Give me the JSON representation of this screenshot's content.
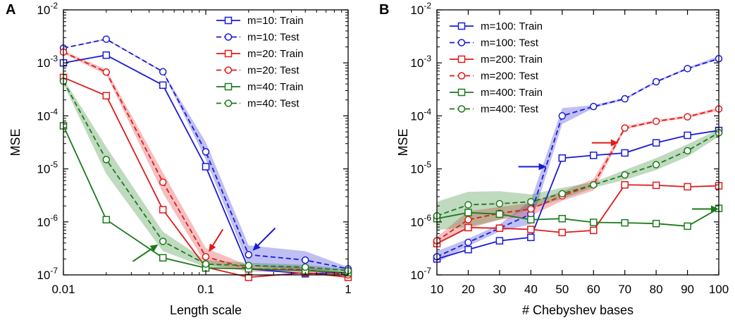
{
  "chart_data": [
    {
      "panel": "A",
      "type": "line",
      "xscale": "log",
      "yscale": "log",
      "xlabel": "Length scale",
      "ylabel": "MSE",
      "xlim": [
        0.01,
        1
      ],
      "ylim": [
        1e-07,
        0.01
      ],
      "xticks": [
        {
          "value": 0.01,
          "label": "0.01"
        },
        {
          "value": 0.1,
          "label": "0.1"
        },
        {
          "value": 1,
          "label": "1"
        }
      ],
      "yticks": [
        {
          "value": 1e-07,
          "base": "10",
          "exp": "-7"
        },
        {
          "value": 1e-06,
          "base": "10",
          "exp": "-6"
        },
        {
          "value": 1e-05,
          "base": "10",
          "exp": "-5"
        },
        {
          "value": 0.0001,
          "base": "10",
          "exp": "-4"
        },
        {
          "value": 0.001,
          "base": "10",
          "exp": "-3"
        },
        {
          "value": 0.01,
          "base": "10",
          "exp": "-2"
        }
      ],
      "legend_position": "top-right",
      "x": [
        0.01,
        0.02,
        0.05,
        0.1,
        0.2,
        0.5,
        1
      ],
      "series": [
        {
          "name": "m=10: Train",
          "color": "#1a1ad6",
          "dash": false,
          "marker": "square",
          "values": [
            0.001,
            0.0014,
            0.00038,
            1.1e-05,
            1.3e-07,
            1.05e-07,
            1.1e-07
          ],
          "band_lo": [
            0.001,
            0.0014,
            0.00038,
            1.1e-05,
            1.3e-07,
            1.05e-07,
            1.1e-07
          ],
          "band_hi": [
            0.001,
            0.0014,
            0.00038,
            1.1e-05,
            1.3e-07,
            1.05e-07,
            1.1e-07
          ]
        },
        {
          "name": "m=10: Test",
          "color": "#1a1ad6",
          "dash": true,
          "marker": "circle",
          "values": [
            0.0019,
            0.0028,
            0.00068,
            2.1e-05,
            2.4e-07,
            1.9e-07,
            1.3e-07
          ],
          "band_lo": [
            0.0019,
            0.0027,
            0.00066,
            1.5e-05,
            1.5e-07,
            1.2e-07,
            1.2e-07
          ],
          "band_hi": [
            0.0019,
            0.0029,
            0.0007,
            3.2e-05,
            3.6e-07,
            2.8e-07,
            1.4e-07
          ]
        },
        {
          "name": "m=20: Train",
          "color": "#e01a1a",
          "dash": false,
          "marker": "square",
          "values": [
            0.00053,
            0.00024,
            1.7e-06,
            1.4e-07,
            9e-08,
            1.1e-07,
            9e-08
          ],
          "band_lo": [
            0.00053,
            0.00024,
            1.7e-06,
            1.4e-07,
            9e-08,
            1.1e-07,
            9e-08
          ],
          "band_hi": [
            0.00053,
            0.00024,
            1.7e-06,
            1.4e-07,
            9e-08,
            1.1e-07,
            9e-08
          ]
        },
        {
          "name": "m=20: Test",
          "color": "#e01a1a",
          "dash": true,
          "marker": "circle",
          "values": [
            0.0016,
            0.00067,
            5.6e-06,
            2.2e-07,
            1.3e-07,
            1.25e-07,
            1e-07
          ],
          "band_lo": [
            0.0015,
            0.0006,
            3.5e-06,
            1.6e-07,
            1.15e-07,
            1.1e-07,
            9e-08
          ],
          "band_hi": [
            0.0017,
            0.00075,
            8.5e-06,
            3.2e-07,
            1.5e-07,
            1.4e-07,
            1.1e-07
          ]
        },
        {
          "name": "m=40: Train",
          "color": "#1a7a1a",
          "dash": false,
          "marker": "square",
          "values": [
            6.5e-05,
            1.1e-06,
            2.1e-07,
            1.35e-07,
            1.3e-07,
            1.2e-07,
            1.1e-07
          ],
          "band_lo": [
            6.5e-05,
            1.1e-06,
            2.1e-07,
            1.35e-07,
            1.3e-07,
            1.2e-07,
            1.1e-07
          ],
          "band_hi": [
            6.5e-05,
            1.1e-06,
            2.1e-07,
            1.35e-07,
            1.3e-07,
            1.2e-07,
            1.1e-07
          ]
        },
        {
          "name": "m=40: Test",
          "color": "#1a7a1a",
          "dash": true,
          "marker": "circle",
          "values": [
            0.00045,
            1.5e-05,
            4.3e-07,
            1.6e-07,
            1.5e-07,
            1.4e-07,
            1.2e-07
          ],
          "band_lo": [
            0.0004,
            8e-06,
            2.8e-07,
            1.4e-07,
            1.35e-07,
            1.25e-07,
            1.1e-07
          ],
          "band_hi": [
            0.0005,
            2.6e-05,
            6.5e-07,
            1.9e-07,
            1.7e-07,
            1.55e-07,
            1.3e-07
          ]
        }
      ],
      "arrows": [
        {
          "color": "#1a1ad6",
          "x": 0.2,
          "y": 2.4e-07,
          "direction": "from-upper-right"
        },
        {
          "color": "#e01a1a",
          "x": 0.1,
          "y": 2.2e-07,
          "direction": "from-upper-right"
        },
        {
          "color": "#1a7a1a",
          "x": 0.05,
          "y": 4.3e-07,
          "direction": "from-lower-left"
        }
      ]
    },
    {
      "panel": "B",
      "type": "line",
      "xscale": "linear",
      "yscale": "log",
      "xlabel": "# Chebyshev bases",
      "ylabel": "MSE",
      "xlim": [
        10,
        100
      ],
      "ylim": [
        1e-07,
        0.01
      ],
      "xticks": [
        {
          "value": 10,
          "label": "10"
        },
        {
          "value": 20,
          "label": "20"
        },
        {
          "value": 30,
          "label": "30"
        },
        {
          "value": 40,
          "label": "40"
        },
        {
          "value": 50,
          "label": "50"
        },
        {
          "value": 60,
          "label": "60"
        },
        {
          "value": 70,
          "label": "70"
        },
        {
          "value": 80,
          "label": "80"
        },
        {
          "value": 90,
          "label": "90"
        },
        {
          "value": 100,
          "label": "100"
        }
      ],
      "yticks": [
        {
          "value": 1e-07,
          "base": "10",
          "exp": "-7"
        },
        {
          "value": 1e-06,
          "base": "10",
          "exp": "-6"
        },
        {
          "value": 1e-05,
          "base": "10",
          "exp": "-5"
        },
        {
          "value": 0.0001,
          "base": "10",
          "exp": "-4"
        },
        {
          "value": 0.001,
          "base": "10",
          "exp": "-3"
        },
        {
          "value": 0.01,
          "base": "10",
          "exp": "-2"
        }
      ],
      "legend_position": "top-left",
      "x": [
        10,
        20,
        30,
        40,
        50,
        60,
        70,
        80,
        90,
        100
      ],
      "series": [
        {
          "name": "m=100: Train",
          "color": "#1a1ad6",
          "dash": false,
          "marker": "square",
          "values": [
            2e-07,
            3e-07,
            4.4e-07,
            5.1e-07,
            1.6e-05,
            1.8e-05,
            2e-05,
            3.1e-05,
            4.3e-05,
            5.3e-05
          ],
          "band_lo": [
            2e-07,
            3e-07,
            4.4e-07,
            5.1e-07,
            1.6e-05,
            1.8e-05,
            2e-05,
            3.1e-05,
            4.3e-05,
            5.3e-05
          ],
          "band_hi": [
            2e-07,
            3e-07,
            4.4e-07,
            5.1e-07,
            1.6e-05,
            1.8e-05,
            2e-05,
            3.1e-05,
            4.3e-05,
            5.3e-05
          ]
        },
        {
          "name": "m=100: Test",
          "color": "#1a1ad6",
          "dash": true,
          "marker": "circle",
          "values": [
            2.2e-07,
            4.1e-07,
            7.6e-07,
            1.4e-06,
            0.0001,
            0.00015,
            0.00021,
            0.00044,
            0.00078,
            0.0012
          ],
          "band_lo": [
            1.7e-07,
            3.5e-07,
            6.6e-07,
            9e-07,
            7e-05,
            0.00014,
            0.0002,
            0.00042,
            0.00075,
            0.00115
          ],
          "band_hi": [
            2.8e-07,
            4.8e-07,
            9e-07,
            2.5e-06,
            0.00014,
            0.00016,
            0.00022,
            0.00046,
            0.00082,
            0.00135
          ]
        },
        {
          "name": "m=200: Train",
          "color": "#e01a1a",
          "dash": false,
          "marker": "square",
          "values": [
            3.9e-07,
            7.8e-07,
            7.6e-07,
            7.2e-07,
            6.3e-07,
            6.9e-07,
            5e-06,
            4.9e-06,
            4.6e-06,
            4.8e-06
          ],
          "band_lo": [
            3.9e-07,
            7.8e-07,
            7.6e-07,
            7.2e-07,
            6.3e-07,
            6.9e-07,
            5e-06,
            4.9e-06,
            4.6e-06,
            4.8e-06
          ],
          "band_hi": [
            3.9e-07,
            7.8e-07,
            7.6e-07,
            7.2e-07,
            6.3e-07,
            6.9e-07,
            5e-06,
            4.9e-06,
            4.6e-06,
            4.8e-06
          ]
        },
        {
          "name": "m=200: Test",
          "color": "#e01a1a",
          "dash": true,
          "marker": "circle",
          "values": [
            4.4e-07,
            1.1e-06,
            1.45e-06,
            1.75e-06,
            3.1e-06,
            5e-06,
            5.9e-05,
            7.9e-05,
            9.6e-05,
            0.000135
          ],
          "band_lo": [
            3.8e-07,
            7.5e-07,
            1.1e-06,
            1.3e-06,
            2.5e-06,
            3.9e-06,
            5.5e-05,
            7.5e-05,
            9e-05,
            0.000125
          ],
          "band_hi": [
            5.2e-07,
            1.6e-06,
            1.9e-06,
            2.3e-06,
            3.8e-06,
            6.4e-06,
            6.4e-05,
            8.4e-05,
            0.000102,
            0.000145
          ]
        },
        {
          "name": "m=400: Train",
          "color": "#1a7a1a",
          "dash": false,
          "marker": "square",
          "values": [
            1.15e-06,
            1.5e-06,
            1.4e-06,
            1.1e-06,
            1.15e-06,
            9.8e-07,
            9.6e-07,
            9.3e-07,
            8.3e-07,
            1.8e-06
          ],
          "band_lo": [
            1.15e-06,
            1.5e-06,
            1.4e-06,
            1.1e-06,
            1.15e-06,
            9.8e-07,
            9.6e-07,
            9.3e-07,
            8.3e-07,
            1.8e-06
          ],
          "band_hi": [
            1.15e-06,
            1.5e-06,
            1.4e-06,
            1.1e-06,
            1.15e-06,
            9.8e-07,
            9.6e-07,
            9.3e-07,
            8.3e-07,
            1.8e-06
          ]
        },
        {
          "name": "m=400: Test",
          "color": "#1a7a1a",
          "dash": true,
          "marker": "circle",
          "values": [
            1.3e-06,
            2.1e-06,
            2.2e-06,
            2.4e-06,
            3.4e-06,
            5e-06,
            7.7e-06,
            1.2e-05,
            2.2e-05,
            4.8e-05
          ],
          "band_lo": [
            7e-07,
            8e-07,
            1.1e-06,
            1.8e-06,
            2.7e-06,
            4.4e-06,
            6.2e-06,
            9.5e-06,
            1.7e-05,
            4.1e-05
          ],
          "band_hi": [
            2.4e-06,
            3.7e-06,
            3.8e-06,
            3.3e-06,
            4.4e-06,
            5.6e-06,
            9.5e-06,
            1.6e-05,
            2.9e-05,
            5.6e-05
          ]
        }
      ],
      "arrows": [
        {
          "color": "#1a1ad6",
          "x": 45,
          "y": 1.1e-05,
          "direction": "from-left"
        },
        {
          "color": "#e01a1a",
          "x": 68,
          "y": 3.1e-05,
          "direction": "from-left"
        },
        {
          "color": "#1a7a1a",
          "x": 100,
          "y": 1.75e-06,
          "direction": "from-left"
        }
      ]
    }
  ]
}
